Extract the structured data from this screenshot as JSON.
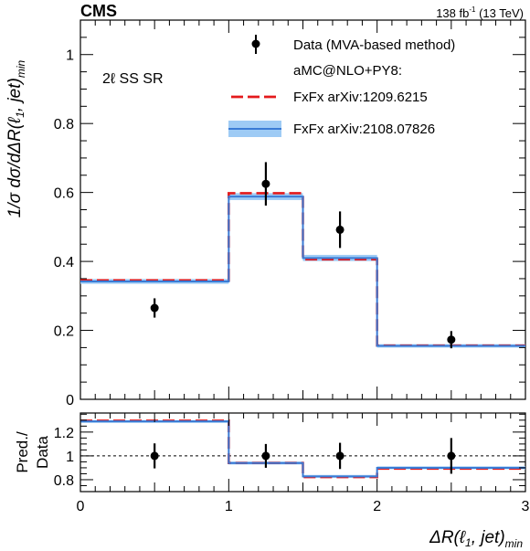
{
  "header": {
    "experiment": "CMS",
    "lumi_value": "138 fb",
    "lumi_exp": "-1",
    "energy": " (13 TeV)"
  },
  "region_label": "2ℓ SS SR",
  "legend": {
    "data_label": "Data (MVA-based method)",
    "group_label": "aMC@NLO+PY8:",
    "fxfx1_label": "FxFx arXiv:1209.6215",
    "fxfx2_label": "FxFx arXiv:2108.07826"
  },
  "colors": {
    "fxfx1": "#e41a1c",
    "fxfx2_line": "#3a7bd5",
    "fxfx2_band": "#9ecbf5",
    "data": "#000000"
  },
  "chart_data": [
    {
      "type": "line",
      "panel": "main",
      "step": true,
      "bin_edges": [
        0,
        1,
        1.5,
        2,
        3
      ],
      "ylabel": "1/σ dσ/dΔR(ℓ 1, jet)min",
      "xlim": [
        0,
        3
      ],
      "ylim": [
        0,
        1.1
      ],
      "yticks": [
        0,
        0.2,
        0.4,
        0.6,
        0.8,
        1
      ],
      "ytick_labels": [
        "0",
        "0.2",
        "0.4",
        "0.6",
        "0.8",
        "1"
      ],
      "series": [
        {
          "name": "FxFx arXiv:1209.6215",
          "style": "dashed-red",
          "values": [
            0.345,
            0.598,
            0.406,
            0.156
          ]
        },
        {
          "name": "FxFx arXiv:2108.07826",
          "style": "solid-blue-band",
          "values": [
            0.342,
            0.588,
            0.41,
            0.155
          ],
          "band": [
            0.007,
            0.01,
            0.009,
            0.005
          ]
        },
        {
          "name": "Data (MVA-based method)",
          "style": "points",
          "x": [
            0.5,
            1.25,
            1.75,
            2.5
          ],
          "y": [
            0.265,
            0.625,
            0.492,
            0.173
          ],
          "yerr": [
            0.028,
            0.063,
            0.053,
            0.025
          ]
        }
      ]
    },
    {
      "type": "line",
      "panel": "ratio",
      "step": true,
      "bin_edges": [
        0,
        1,
        1.5,
        2,
        3
      ],
      "xlabel": "ΔR(ℓ 1, jet)min",
      "ylabel": "Pred./ Data",
      "xlim": [
        0,
        3
      ],
      "ylim": [
        0.7,
        1.36
      ],
      "xticks": [
        0,
        1,
        2,
        3
      ],
      "xtick_labels": [
        "0",
        "1",
        "2",
        "3"
      ],
      "yticks": [
        0.8,
        1,
        1.2
      ],
      "ytick_labels": [
        "0.8",
        "1",
        "1.2"
      ],
      "reference_line": 1,
      "series": [
        {
          "name": "FxFx arXiv:1209.6215",
          "style": "dashed-red",
          "values": [
            1.295,
            0.94,
            0.822,
            0.893
          ]
        },
        {
          "name": "FxFx arXiv:2108.07826",
          "style": "solid-blue-band",
          "values": [
            1.29,
            0.94,
            0.828,
            0.9
          ],
          "band": [
            0.01,
            0.012,
            0.012,
            0.012
          ]
        },
        {
          "name": "Data (MVA-based method)",
          "style": "points",
          "x": [
            0.5,
            1.25,
            1.75,
            2.5
          ],
          "y": [
            1,
            1,
            1,
            1
          ],
          "yerr": [
            0.105,
            0.1,
            0.11,
            0.15
          ]
        }
      ]
    }
  ]
}
